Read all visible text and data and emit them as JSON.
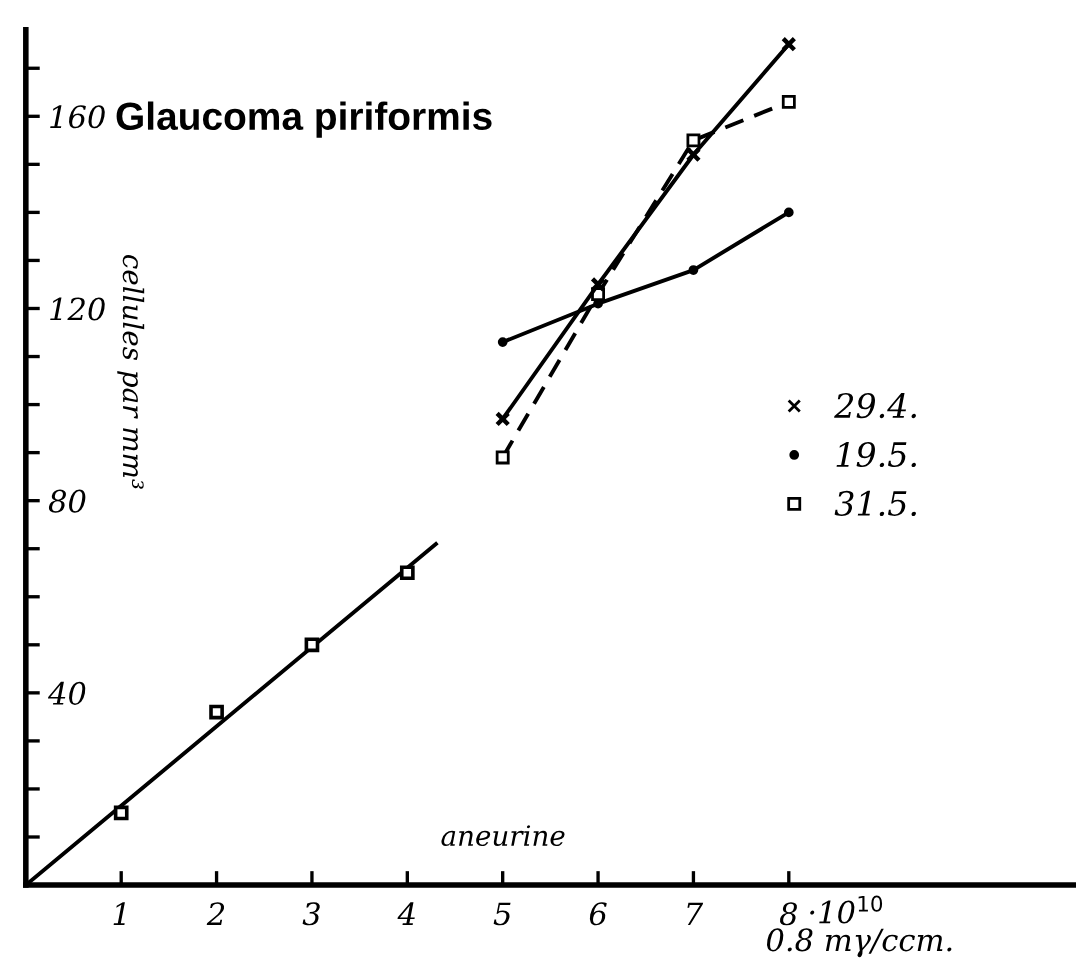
{
  "chart_data": {
    "type": "line",
    "title": "Glaucoma piriformis",
    "ylabel": "cellules par mm³",
    "xlabel": "0.8 mγ/ccm.",
    "annotations": [
      "aneurine",
      "·10$^{10}$"
    ],
    "xlim": [
      0,
      11
    ],
    "ylim": [
      0,
      178
    ],
    "xticks": [
      1,
      2,
      3,
      4,
      5,
      6,
      7,
      8
    ],
    "yticks": [
      {
        "value": 10,
        "label": null
      },
      {
        "value": 20,
        "label": null
      },
      {
        "value": 30,
        "label": null
      },
      40,
      {
        "value": 50,
        "label": null
      },
      {
        "value": 60,
        "label": null
      },
      {
        "value": 70,
        "label": null
      },
      80,
      {
        "value": 90,
        "label": null
      },
      {
        "value": 100,
        "label": null
      },
      {
        "value": 110,
        "label": null
      },
      120,
      {
        "value": 130,
        "label": null
      },
      {
        "value": 140,
        "label": null
      },
      {
        "value": 150,
        "label": null
      },
      160,
      {
        "value": 170,
        "label": null
      }
    ],
    "grid": false,
    "legend": "right",
    "series": [
      {
        "type": "line",
        "color": "#000000",
        "x": [
          0,
          4.3
        ],
        "values": [
          0,
          71
        ],
        "marker": "none",
        "line_style": "solid"
      },
      {
        "type": "scatter",
        "color": "#000000",
        "x": [
          1,
          2,
          3,
          4
        ],
        "values": [
          15,
          36,
          50,
          65
        ],
        "marker": "square"
      },
      {
        "name": "29.4.",
        "color": "#000000",
        "x": [
          5,
          6,
          7,
          8
        ],
        "values": [
          97,
          125,
          152,
          175
        ],
        "marker": "cross",
        "line_style": "solid"
      },
      {
        "name": "19.5.",
        "color": "#000000",
        "x": [
          5,
          6,
          7,
          8
        ],
        "values": [
          113,
          121,
          128,
          140
        ],
        "marker": "circle",
        "line_style": "solid"
      },
      {
        "name": "31.5.",
        "color": "#000000",
        "x": [
          5,
          6,
          7,
          8
        ],
        "values": [
          89,
          123,
          155,
          163
        ],
        "marker": "square",
        "line_style": "dashed"
      }
    ]
  }
}
